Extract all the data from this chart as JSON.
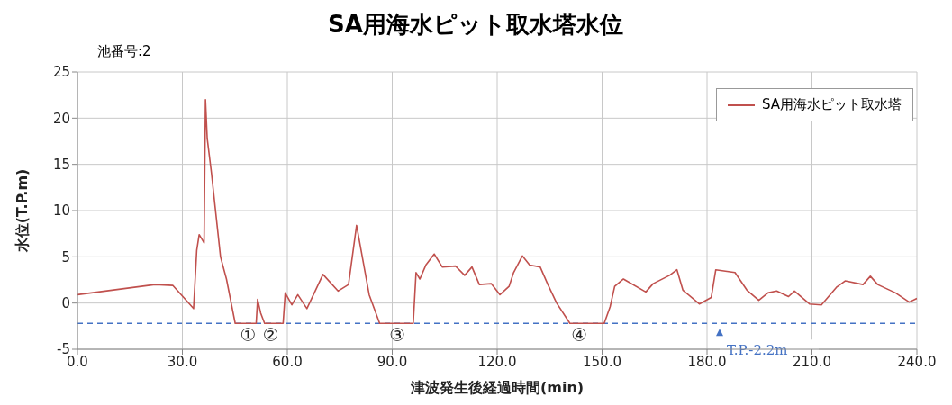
{
  "chart_data": {
    "type": "line",
    "title": "SA用海水ピット取水塔水位",
    "subtitle": "池番号:2",
    "xlabel": "津波発生後経過時間(min)",
    "ylabel": "水位(T.P.m)",
    "x": [
      0,
      22.2,
      27.3,
      33.2,
      34.1,
      34.8,
      36.2,
      36.6,
      37.1,
      38.3,
      40.9,
      42.6,
      45.1,
      51.1,
      51.5,
      52.4,
      53.5,
      58.8,
      59.4,
      61.3,
      63,
      65.6,
      70.2,
      74.5,
      77.5,
      79.8,
      83.4,
      86.4,
      96,
      96.8,
      97.9,
      99.6,
      102,
      104.3,
      108.1,
      110.7,
      112.8,
      114.9,
      118.3,
      120.8,
      123.4,
      124.7,
      127.2,
      129.3,
      132.3,
      134.5,
      137,
      140.8,
      150.6,
      152.3,
      153.6,
      156.1,
      162.5,
      164.6,
      169.3,
      171.4,
      173.1,
      177.8,
      181.2,
      182.5,
      188,
      191.4,
      194.8,
      197.4,
      199.9,
      203.3,
      205,
      209.3,
      212.7,
      217,
      219.5,
      224.6,
      226.7,
      228.8,
      233.9,
      237.8,
      240
    ],
    "series": [
      {
        "name": "SA用海水ピット取水塔",
        "color": "#c0504d",
        "values": [
          0.9,
          2.0,
          1.9,
          -0.6,
          5.7,
          7.4,
          6.5,
          22,
          17.8,
          14.1,
          5.0,
          2.6,
          -2.2,
          -2.2,
          0.4,
          -1.1,
          -2.2,
          -2.2,
          1.1,
          -0.2,
          0.9,
          -0.6,
          3.1,
          1.3,
          2.0,
          8.4,
          0.9,
          -2.2,
          -2.2,
          3.3,
          2.6,
          4.1,
          5.3,
          3.9,
          4.0,
          3.0,
          3.9,
          2.0,
          2.1,
          0.9,
          1.8,
          3.3,
          5.1,
          4.1,
          3.9,
          2.0,
          0,
          -2.2,
          -2.2,
          -0.4,
          1.8,
          2.6,
          1.2,
          2.1,
          3.0,
          3.6,
          1.4,
          -0.1,
          0.6,
          3.6,
          3.3,
          1.4,
          0.3,
          1.1,
          1.3,
          0.7,
          1.3,
          -0.1,
          -0.2,
          1.7,
          2.4,
          2.0,
          2.9,
          2.0,
          1.1,
          0.1,
          0.5
        ]
      }
    ],
    "xlim": [
      0,
      240
    ],
    "xticks": [
      {
        "value": 0,
        "label": "0.0"
      },
      {
        "value": 30,
        "label": "30.0"
      },
      {
        "value": 60,
        "label": "60.0"
      },
      {
        "value": 90,
        "label": "90.0"
      },
      {
        "value": 120,
        "label": "120.0"
      },
      {
        "value": 150,
        "label": "150.0"
      },
      {
        "value": 180,
        "label": "180.0"
      },
      {
        "value": 210,
        "label": "210.0"
      },
      {
        "value": 240,
        "label": "240.0"
      }
    ],
    "ylim": [
      -5,
      25
    ],
    "yticks": [
      -5,
      0,
      5,
      10,
      15,
      20,
      25
    ],
    "grid": true,
    "legend": "top right",
    "marker": "none",
    "line_style": "solid",
    "ref_lines": [
      {
        "axis": "y",
        "value": -2.2,
        "label": "T.P.-2.2m",
        "color": "#4472c4",
        "line_style": "dashed"
      }
    ],
    "annotations": [
      {
        "text": "①",
        "x": 48.8,
        "y": -2.2
      },
      {
        "text": "②",
        "x": 55.3,
        "y": -2.2
      },
      {
        "text": "③",
        "x": 91.5,
        "y": -2.2
      },
      {
        "text": "④",
        "x": 143.5,
        "y": -2.2
      }
    ]
  }
}
